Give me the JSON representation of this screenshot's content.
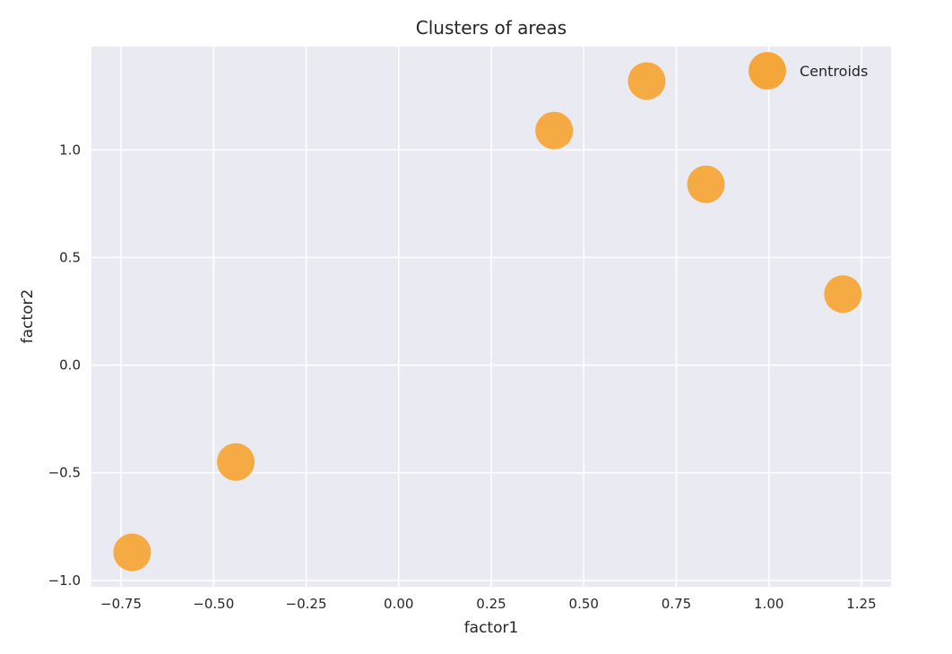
{
  "chart_data": {
    "type": "scatter",
    "title": "Clusters of areas",
    "xlabel": "factor1",
    "ylabel": "factor2",
    "xlim": [
      -0.83,
      1.33
    ],
    "ylim": [
      -1.03,
      1.48
    ],
    "xticks": [
      -0.75,
      -0.5,
      -0.25,
      0.0,
      0.25,
      0.5,
      0.75,
      1.0,
      1.25
    ],
    "xtick_labels": [
      "−0.75",
      "−0.50",
      "−0.25",
      "0.00",
      "0.25",
      "0.50",
      "0.75",
      "1.00",
      "1.25"
    ],
    "yticks": [
      -1.0,
      -0.5,
      0.0,
      0.5,
      1.0
    ],
    "ytick_labels": [
      "−1.0",
      "−0.5",
      "0.0",
      "0.5",
      "1.0"
    ],
    "grid": true,
    "legend": {
      "placement": "top-right",
      "entries": [
        "Centroids"
      ]
    },
    "series": [
      {
        "name": "Centroids",
        "color": "#f5a639",
        "x": [
          -0.72,
          -0.44,
          0.42,
          0.67,
          0.83,
          1.2
        ],
        "y": [
          -0.87,
          -0.45,
          1.09,
          1.32,
          0.84,
          0.33
        ]
      }
    ],
    "colors": {
      "plot_background": "#eaeaf2",
      "grid": "#ffffff",
      "marker": "#f5a639"
    }
  }
}
